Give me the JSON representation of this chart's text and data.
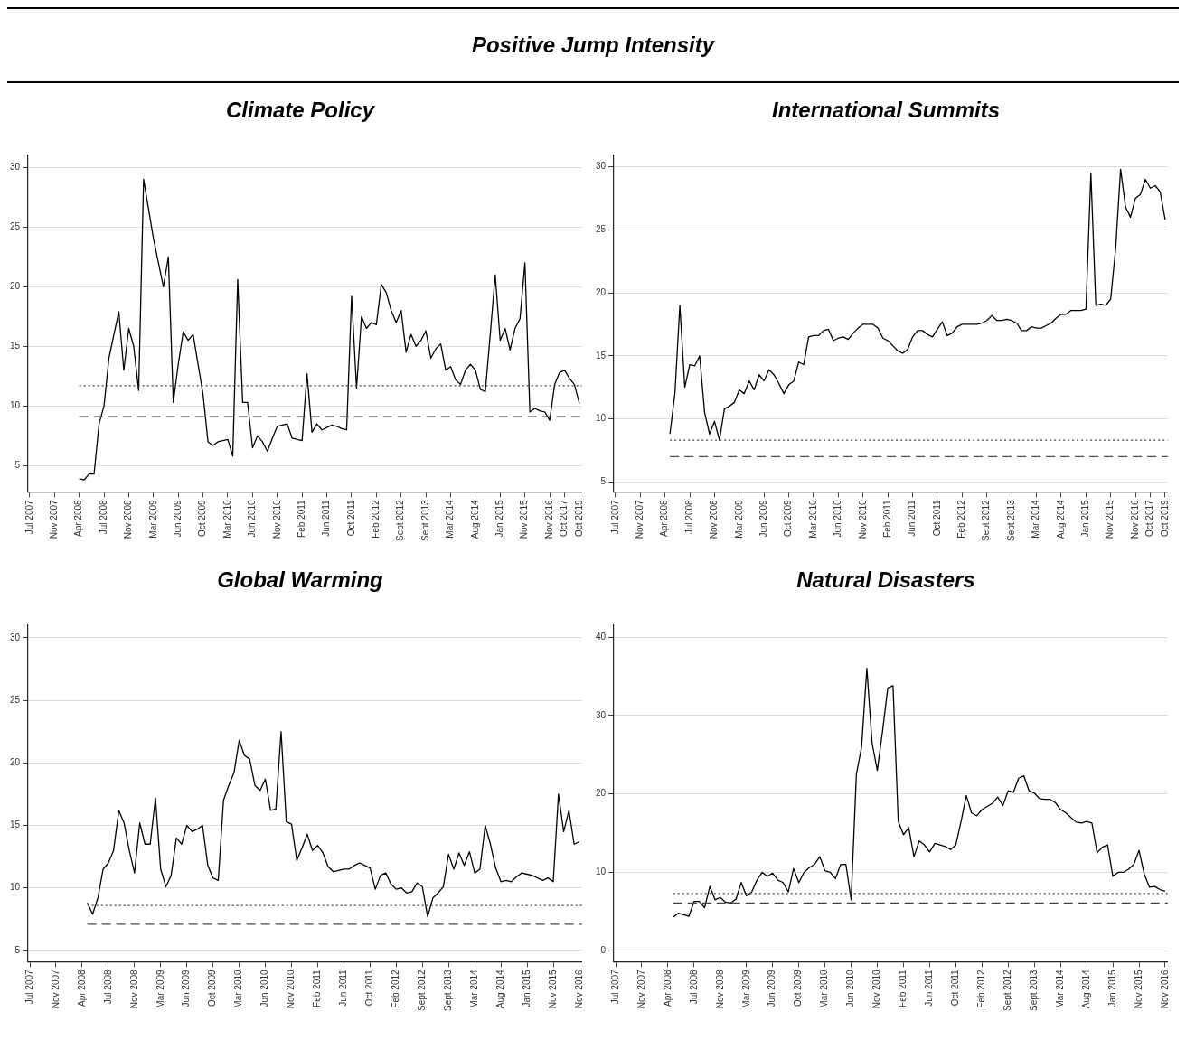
{
  "chart_data": [
    {
      "type": "other",
      "title": "Positive Jump Intensity"
    },
    {
      "type": "line",
      "title": "Climate Policy",
      "grid": "y",
      "ylim": [
        2.8,
        31
      ],
      "yticks": [
        5,
        10,
        15,
        20,
        25,
        30
      ],
      "categories": [
        "Jul 2007",
        null,
        null,
        null,
        null,
        "Nov 2007",
        null,
        null,
        null,
        null,
        "Apr 2008",
        null,
        null,
        null,
        null,
        "Jul 2008",
        null,
        null,
        null,
        null,
        "Nov 2008",
        null,
        null,
        null,
        null,
        "Mar 2009",
        null,
        null,
        null,
        null,
        "Jun 2009",
        null,
        null,
        null,
        null,
        "Oct 2009",
        null,
        null,
        null,
        null,
        "Mar 2010",
        null,
        null,
        null,
        null,
        "Jun 2010",
        null,
        null,
        null,
        null,
        "Nov 2010",
        null,
        null,
        null,
        null,
        "Feb 2011",
        null,
        null,
        null,
        null,
        "Jun 2011",
        null,
        null,
        null,
        null,
        "Oct 2011",
        null,
        null,
        null,
        null,
        "Feb 2012",
        null,
        null,
        null,
        null,
        "Sept 2012",
        null,
        null,
        null,
        null,
        "Sept 2013",
        null,
        null,
        null,
        null,
        "Mar 2014",
        null,
        null,
        null,
        null,
        "Aug 2014",
        null,
        null,
        null,
        null,
        "Jan 2015",
        null,
        null,
        null,
        null,
        "Nov 2015",
        null,
        null,
        null,
        null,
        "Nov 2016",
        null,
        null,
        "Oct 2017",
        null,
        null,
        "Oct 2019"
      ],
      "ref_lines": [
        {
          "axis": "y",
          "value": 11.7,
          "color": "#444444",
          "line_style": "dotted"
        },
        {
          "axis": "y",
          "value": 9.1,
          "color": "#444444",
          "line_style": "dashed"
        }
      ],
      "series": [
        {
          "color": "#000000",
          "values": [
            null,
            null,
            null,
            null,
            null,
            null,
            null,
            null,
            null,
            null,
            3.9,
            3.8,
            4.3,
            4.3,
            8.5,
            10,
            14,
            16,
            17.9,
            13,
            16.5,
            15,
            11.3,
            29,
            26.5,
            24,
            22,
            20,
            22.5,
            10.3,
            13.5,
            16.2,
            15.5,
            16,
            13.5,
            11,
            7,
            6.7,
            7,
            7.1,
            7.2,
            5.8,
            20.6,
            10.3,
            10.3,
            6.5,
            7.5,
            7,
            6.2,
            7.3,
            8.3,
            8.4,
            8.5,
            7.3,
            7.2,
            7.1,
            12.7,
            7.8,
            8.5,
            8,
            8.2,
            8.4,
            8.3,
            8.1,
            8,
            19.2,
            11.5,
            17.5,
            16.5,
            17,
            16.8,
            20.2,
            19.5,
            18,
            17,
            18,
            14.5,
            16,
            15,
            15.5,
            16.3,
            14,
            14.8,
            15.2,
            13,
            13.3,
            12.2,
            11.8,
            13,
            13.5,
            13,
            11.4,
            11.2,
            16,
            21,
            15.5,
            16.5,
            14.7,
            16.5,
            17.3,
            22,
            9.5,
            9.8,
            9.6,
            9.5,
            8.8,
            11.8,
            12.8,
            13,
            12.3,
            11.8,
            10.2
          ]
        }
      ]
    },
    {
      "type": "line",
      "title": "International Summits",
      "grid": "y",
      "ylim": [
        4.2,
        30.9
      ],
      "yticks": [
        5,
        10,
        15,
        20,
        25,
        30
      ],
      "categories": [
        "Jul 2007",
        null,
        null,
        null,
        null,
        "Nov 2007",
        null,
        null,
        null,
        null,
        "Apr 2008",
        null,
        null,
        null,
        null,
        "Jul 2008",
        null,
        null,
        null,
        null,
        "Nov 2008",
        null,
        null,
        null,
        null,
        "Mar 2009",
        null,
        null,
        null,
        null,
        "Jun 2009",
        null,
        null,
        null,
        null,
        "Oct 2009",
        null,
        null,
        null,
        null,
        "Mar 2010",
        null,
        null,
        null,
        null,
        "Jun 2010",
        null,
        null,
        null,
        null,
        "Nov 2010",
        null,
        null,
        null,
        null,
        "Feb 2011",
        null,
        null,
        null,
        null,
        "Jun 2011",
        null,
        null,
        null,
        null,
        "Oct 2011",
        null,
        null,
        null,
        null,
        "Feb 2012",
        null,
        null,
        null,
        null,
        "Sept 2012",
        null,
        null,
        null,
        null,
        "Sept 2013",
        null,
        null,
        null,
        null,
        "Mar 2014",
        null,
        null,
        null,
        null,
        "Aug 2014",
        null,
        null,
        null,
        null,
        "Jan 2015",
        null,
        null,
        null,
        null,
        "Nov 2015",
        null,
        null,
        null,
        null,
        "Nov 2016",
        null,
        null,
        "Oct 2017",
        null,
        null,
        "Oct 2019"
      ],
      "ref_lines": [
        {
          "axis": "y",
          "value": 8.3,
          "color": "#444444",
          "line_style": "dotted"
        },
        {
          "axis": "y",
          "value": 7.0,
          "color": "#444444",
          "line_style": "dashed"
        }
      ],
      "series": [
        {
          "color": "#000000",
          "values": [
            null,
            null,
            null,
            null,
            null,
            null,
            null,
            null,
            null,
            null,
            null,
            8.8,
            12,
            19,
            12.5,
            14.3,
            14.2,
            15,
            10.5,
            8.8,
            9.8,
            8.3,
            10.8,
            11,
            11.3,
            12.3,
            12,
            13,
            12.3,
            13.5,
            13,
            13.9,
            13.5,
            12.8,
            12,
            12.7,
            13,
            14.5,
            14.3,
            16.5,
            16.6,
            16.6,
            17,
            17.1,
            16.2,
            16.4,
            16.5,
            16.3,
            16.8,
            17.2,
            17.5,
            17.5,
            17.5,
            17.2,
            16.4,
            16.2,
            15.8,
            15.4,
            15.2,
            15.5,
            16.5,
            17,
            17,
            16.7,
            16.5,
            17.1,
            17.7,
            16.6,
            16.8,
            17.3,
            17.5,
            17.5,
            17.5,
            17.5,
            17.6,
            17.8,
            18.2,
            17.8,
            17.8,
            17.9,
            17.8,
            17.6,
            17,
            17,
            17.3,
            17.2,
            17.2,
            17.4,
            17.6,
            18,
            18.3,
            18.3,
            18.6,
            18.6,
            18.6,
            18.7,
            29.5,
            19,
            19.1,
            19,
            19.5,
            23.5,
            29.8,
            26.8,
            26,
            27.5,
            27.8,
            29,
            28.3,
            28.5,
            28,
            25.8
          ]
        }
      ]
    },
    {
      "type": "line",
      "title": "Global Warming",
      "grid": "y",
      "ylim": [
        4.1,
        31
      ],
      "yticks": [
        5,
        10,
        15,
        20,
        25,
        30
      ],
      "categories": [
        "Jul 2007",
        null,
        null,
        null,
        null,
        "Nov 2007",
        null,
        null,
        null,
        null,
        "Apr 2008",
        null,
        null,
        null,
        null,
        "Jul 2008",
        null,
        null,
        null,
        null,
        "Nov 2008",
        null,
        null,
        null,
        null,
        "Mar 2009",
        null,
        null,
        null,
        null,
        "Jun 2009",
        null,
        null,
        null,
        null,
        "Oct 2009",
        null,
        null,
        null,
        null,
        "Mar 2010",
        null,
        null,
        null,
        null,
        "Jun 2010",
        null,
        null,
        null,
        null,
        "Nov 2010",
        null,
        null,
        null,
        null,
        "Feb 2011",
        null,
        null,
        null,
        null,
        "Jun 2011",
        null,
        null,
        null,
        null,
        "Oct 2011",
        null,
        null,
        null,
        null,
        "Feb 2012",
        null,
        null,
        null,
        null,
        "Sept 2012",
        null,
        null,
        null,
        null,
        "Sept 2013",
        null,
        null,
        null,
        null,
        "Mar 2014",
        null,
        null,
        null,
        null,
        "Aug 2014",
        null,
        null,
        null,
        null,
        "Jan 2015",
        null,
        null,
        null,
        null,
        "Nov 2015",
        null,
        null,
        null,
        null,
        "Nov 2016"
      ],
      "ref_lines": [
        {
          "axis": "y",
          "value": 8.6,
          "color": "#444444",
          "line_style": "dotted"
        },
        {
          "axis": "y",
          "value": 7.1,
          "color": "#444444",
          "line_style": "dashed"
        }
      ],
      "series": [
        {
          "color": "#000000",
          "values": [
            null,
            null,
            null,
            null,
            null,
            null,
            null,
            null,
            null,
            null,
            null,
            8.8,
            7.9,
            9.2,
            11.5,
            12,
            13,
            16.2,
            15.2,
            13,
            11.2,
            15.2,
            13.5,
            13.5,
            17.2,
            11.5,
            10.1,
            11,
            14,
            13.5,
            15,
            14.5,
            14.7,
            15,
            11.8,
            10.8,
            10.6,
            17,
            18.2,
            19.2,
            21.8,
            20.6,
            20.3,
            18.2,
            17.8,
            18.7,
            16.2,
            16.3,
            22.5,
            15.3,
            15.1,
            12.2,
            13.2,
            14.3,
            13,
            13.4,
            12.8,
            11.7,
            11.3,
            11.4,
            11.5,
            11.5,
            11.8,
            12,
            11.8,
            11.6,
            9.9,
            11,
            11.2,
            10.3,
            9.9,
            10,
            9.6,
            9.7,
            10.4,
            10.1,
            7.7,
            9.2,
            9.6,
            10.1,
            12.7,
            11.5,
            12.8,
            11.8,
            12.9,
            11.2,
            11.5,
            15,
            13.5,
            11.6,
            10.5,
            10.6,
            10.5,
            10.9,
            11.2,
            11.1,
            11,
            10.8,
            10.6,
            10.8,
            10.5,
            17.5,
            14.5,
            16.2,
            13.5,
            13.7
          ]
        }
      ]
    },
    {
      "type": "line",
      "title": "Natural Disasters",
      "grid": "y",
      "ylim": [
        -1.4,
        41.5
      ],
      "yticks": [
        0,
        10,
        20,
        30,
        40
      ],
      "categories": [
        "Jul 2007",
        null,
        null,
        null,
        null,
        "Nov 2007",
        null,
        null,
        null,
        null,
        "Apr 2008",
        null,
        null,
        null,
        null,
        "Jul 2008",
        null,
        null,
        null,
        null,
        "Nov 2008",
        null,
        null,
        null,
        null,
        "Mar 2009",
        null,
        null,
        null,
        null,
        "Jun 2009",
        null,
        null,
        null,
        null,
        "Oct 2009",
        null,
        null,
        null,
        null,
        "Mar 2010",
        null,
        null,
        null,
        null,
        "Jun 2010",
        null,
        null,
        null,
        null,
        "Nov 2010",
        null,
        null,
        null,
        null,
        "Feb 2011",
        null,
        null,
        null,
        null,
        "Jun 2011",
        null,
        null,
        null,
        null,
        "Oct 2011",
        null,
        null,
        null,
        null,
        "Feb 2012",
        null,
        null,
        null,
        null,
        "Sept 2012",
        null,
        null,
        null,
        null,
        "Sept 2013",
        null,
        null,
        null,
        null,
        "Mar 2014",
        null,
        null,
        null,
        null,
        "Aug 2014",
        null,
        null,
        null,
        null,
        "Jan 2015",
        null,
        null,
        null,
        null,
        "Nov 2015",
        null,
        null,
        null,
        null,
        "Nov 2016"
      ],
      "ref_lines": [
        {
          "axis": "y",
          "value": 7.3,
          "color": "#444444",
          "line_style": "dotted"
        },
        {
          "axis": "y",
          "value": 6.1,
          "color": "#444444",
          "line_style": "dashed"
        }
      ],
      "series": [
        {
          "color": "#000000",
          "values": [
            null,
            null,
            null,
            null,
            null,
            null,
            null,
            null,
            null,
            null,
            null,
            4.3,
            4.8,
            4.6,
            4.4,
            6.3,
            6.3,
            5.5,
            8.2,
            6.5,
            6.8,
            6.2,
            6.1,
            6.6,
            8.7,
            7,
            7.5,
            9,
            10,
            9.5,
            9.9,
            9,
            8.7,
            7.5,
            10.5,
            8.7,
            10,
            10.6,
            11,
            12,
            10.2,
            10,
            9.2,
            11,
            11,
            6.5,
            22.5,
            26,
            36,
            26.5,
            23,
            28,
            33.5,
            33.8,
            16.5,
            14.8,
            15.7,
            12,
            14,
            13.5,
            12.6,
            13.7,
            13.5,
            13.3,
            12.9,
            13.5,
            16.5,
            19.8,
            17.6,
            17.2,
            18,
            18.4,
            18.8,
            19.6,
            18.5,
            20.4,
            20.2,
            22,
            22.3,
            20.4,
            20.1,
            19.4,
            19.3,
            19.3,
            18.9,
            18,
            17.6,
            17,
            16.4,
            16.3,
            16.5,
            16.3,
            12.5,
            13.2,
            13.5,
            9.5,
            10,
            10,
            10.4,
            11,
            12.8,
            9.8,
            8.1,
            8.2,
            7.8,
            7.6
          ]
        }
      ]
    }
  ]
}
